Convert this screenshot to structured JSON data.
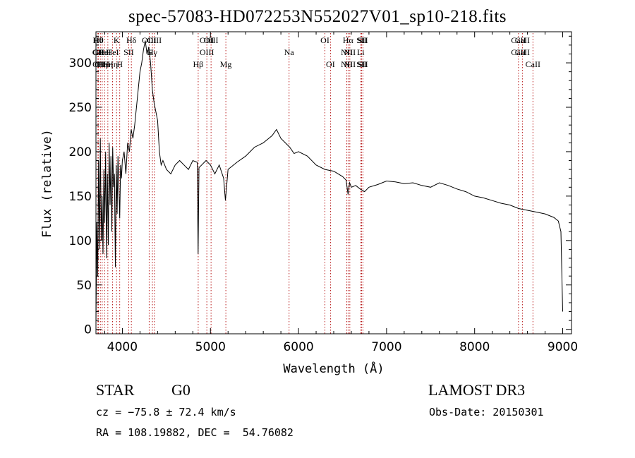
{
  "title": "spec-57083-HD072253N552027V01_sp10-218.fits",
  "info": {
    "class_label": "STAR",
    "subclass": "G0",
    "survey": "LAMOST DR3",
    "cz": "cz = −75.8 ± 72.4 km/s",
    "obs_date": "Obs-Date: 20150301",
    "coords": "RA = 108.19882, DEC =  54.76082"
  },
  "chart_data": {
    "type": "line",
    "xlabel": "Wavelength (Å)",
    "ylabel": "Flux (relative)",
    "xlim": [
      3700,
      9100
    ],
    "ylim": [
      -5,
      335
    ],
    "xticks": [
      4000,
      5000,
      6000,
      7000,
      8000,
      9000
    ],
    "yticks": [
      0,
      50,
      100,
      150,
      200,
      250,
      300
    ],
    "series": [
      {
        "x": [
          3700,
          3710,
          3720,
          3730,
          3740,
          3750,
          3760,
          3770,
          3780,
          3790,
          3800,
          3810,
          3820,
          3830,
          3840,
          3850,
          3860,
          3870,
          3880,
          3890,
          3900,
          3910,
          3920,
          3930,
          3940,
          3950,
          3960,
          3970,
          3980,
          3990,
          4000,
          4020,
          4040,
          4060,
          4080,
          4100,
          4120,
          4140,
          4160,
          4180,
          4200,
          4220,
          4240,
          4260,
          4280,
          4300,
          4320,
          4340,
          4360,
          4380,
          4400,
          4420,
          4440,
          4460,
          4500,
          4550,
          4600,
          4650,
          4700,
          4750,
          4800,
          4850,
          4860,
          4870,
          4900,
          4950,
          5000,
          5050,
          5100,
          5150,
          5170,
          5200,
          5300,
          5400,
          5500,
          5600,
          5700,
          5750,
          5800,
          5850,
          5900,
          5950,
          6000,
          6100,
          6200,
          6300,
          6400,
          6500,
          6540,
          6563,
          6580,
          6600,
          6650,
          6700,
          6750,
          6800,
          6900,
          7000,
          7100,
          7200,
          7300,
          7400,
          7500,
          7600,
          7700,
          7800,
          7900,
          8000,
          8100,
          8200,
          8300,
          8400,
          8500,
          8600,
          8700,
          8800,
          8850,
          8900,
          8950,
          8980,
          9000
        ],
        "y": [
          5,
          120,
          60,
          190,
          90,
          215,
          100,
          150,
          85,
          180,
          120,
          200,
          80,
          175,
          95,
          210,
          140,
          195,
          110,
          205,
          160,
          175,
          70,
          185,
          130,
          195,
          160,
          125,
          185,
          170,
          190,
          200,
          175,
          210,
          200,
          225,
          215,
          230,
          250,
          270,
          290,
          300,
          315,
          325,
          310,
          318,
          300,
          270,
          255,
          245,
          235,
          200,
          185,
          190,
          180,
          175,
          185,
          190,
          185,
          180,
          190,
          188,
          85,
          182,
          185,
          190,
          185,
          175,
          185,
          170,
          145,
          180,
          188,
          195,
          205,
          210,
          218,
          225,
          215,
          210,
          205,
          198,
          200,
          195,
          185,
          180,
          178,
          172,
          168,
          152,
          165,
          160,
          162,
          158,
          155,
          160,
          163,
          167,
          166,
          164,
          165,
          162,
          160,
          165,
          162,
          158,
          155,
          150,
          148,
          145,
          142,
          140,
          136,
          134,
          132,
          130,
          128,
          126,
          122,
          110,
          20
        ]
      }
    ],
    "lines": [
      {
        "wave": 3722,
        "top": "Hθ",
        "mid": "CII"
      },
      {
        "wave": 3728,
        "top": "Hθ",
        "mid": "CII",
        "bot": "OII"
      },
      {
        "wave": 3750,
        "bot": "OII"
      },
      {
        "wave": 3771,
        "mid": "HeI",
        "bot": "Hη"
      },
      {
        "wave": 3798,
        "mid": "HeI"
      },
      {
        "wave": 3835,
        "bot": "Hη"
      },
      {
        "wave": 3889,
        "mid": "HeI",
        "bot": "Hη"
      },
      {
        "wave": 3934,
        "top": "K"
      },
      {
        "wave": 3970,
        "bot": "H"
      },
      {
        "wave": 4072,
        "mid": "SII"
      },
      {
        "wave": 4102,
        "top": "Hδ"
      },
      {
        "wave": 4304,
        "top": "OIII",
        "mid": "G"
      },
      {
        "wave": 4341,
        "mid": "Hγ"
      },
      {
        "wave": 4363,
        "top": "OIII"
      },
      {
        "wave": 4861,
        "bot": "Hβ"
      },
      {
        "wave": 4959,
        "top": "OIII",
        "mid": "OIII"
      },
      {
        "wave": 5007,
        "top": "OIII"
      },
      {
        "wave": 5175,
        "bot": "Mg"
      },
      {
        "wave": 5893,
        "mid": "Na"
      },
      {
        "wave": 6300,
        "top": "OI"
      },
      {
        "wave": 6363,
        "bot": "OI"
      },
      {
        "wave": 6548,
        "mid": "NII",
        "bot": "NII"
      },
      {
        "wave": 6563,
        "top": "Hα"
      },
      {
        "wave": 6583,
        "mid": "NII",
        "bot": "NII"
      },
      {
        "wave": 6707,
        "mid": "Li"
      },
      {
        "wave": 6716,
        "top": "SII",
        "bot": "SII"
      },
      {
        "wave": 6731,
        "top": "SII",
        "bot": "SII"
      },
      {
        "wave": 8498,
        "top": "CaII",
        "mid": "CaII"
      },
      {
        "wave": 8542,
        "top": "CaII",
        "mid": "CaII"
      },
      {
        "wave": 8662,
        "bot": "CaII"
      }
    ]
  }
}
